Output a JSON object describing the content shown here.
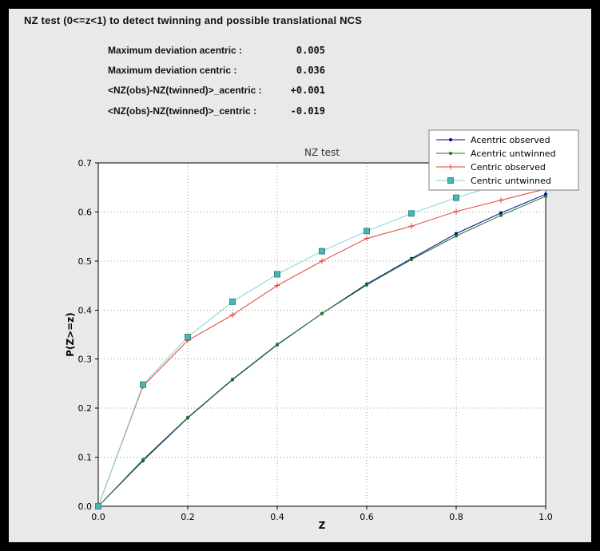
{
  "window": {
    "title": "NZ test (0<=z<1) to detect twinning and possible translational NCS"
  },
  "stats": [
    {
      "label": "Maximum deviation acentric :",
      "value": "0.005"
    },
    {
      "label": "Maximum deviation centric :",
      "value": "0.036"
    },
    {
      "label": "<NZ(obs)-NZ(twinned)>_acentric :",
      "value": "+0.001"
    },
    {
      "label": "<NZ(obs)-NZ(twinned)>_centric :",
      "value": "-0.019"
    }
  ],
  "chart_data": {
    "type": "line",
    "title": "NZ test",
    "xlabel": "Z",
    "ylabel": "P(Z>=z)",
    "xlim": [
      0,
      1
    ],
    "ylim": [
      0,
      0.7
    ],
    "xticks": [
      "0.0",
      "0.2",
      "0.4",
      "0.6",
      "0.8",
      "1.0"
    ],
    "yticks": [
      "0.0",
      "0.1",
      "0.2",
      "0.3",
      "0.4",
      "0.5",
      "0.6",
      "0.7"
    ],
    "grid": "dotted",
    "legend_position": "top-right",
    "x": [
      0.0,
      0.1,
      0.2,
      0.3,
      0.4,
      0.5,
      0.6,
      0.7,
      0.8,
      0.9,
      1.0
    ],
    "series": [
      {
        "name": "Acentric observed",
        "color": "#00009c",
        "marker": "dot",
        "values": [
          0.0,
          0.093,
          0.18,
          0.258,
          0.329,
          0.393,
          0.453,
          0.505,
          0.556,
          0.598,
          0.636
        ]
      },
      {
        "name": "Acentric untwinned",
        "color": "#1f7a1f",
        "marker": "dot",
        "values": [
          0.0,
          0.095,
          0.181,
          0.259,
          0.33,
          0.393,
          0.451,
          0.503,
          0.551,
          0.593,
          0.632
        ]
      },
      {
        "name": "Centric observed",
        "color": "#e04038",
        "marker": "plus",
        "values": [
          0.0,
          0.245,
          0.338,
          0.39,
          0.45,
          0.5,
          0.546,
          0.571,
          0.601,
          0.624,
          0.647
        ]
      },
      {
        "name": "Centric untwinned",
        "color": "#7fd6d6",
        "marker": "square",
        "marker_fill": "#4fb3b3",
        "marker_edge": "#2e8c8c",
        "values": [
          0.0,
          0.248,
          0.345,
          0.417,
          0.473,
          0.52,
          0.561,
          0.597,
          0.629,
          0.657,
          0.683
        ]
      }
    ]
  }
}
